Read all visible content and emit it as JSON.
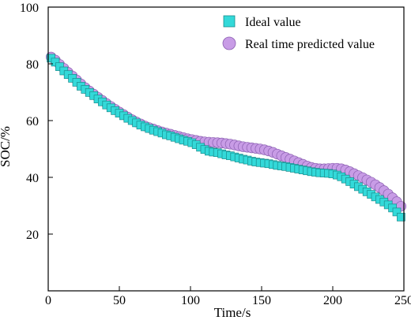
{
  "chart_data": {
    "type": "scatter",
    "title": "",
    "xlabel": "Time/s",
    "ylabel": "SOC/%",
    "xlim": [
      0,
      250
    ],
    "ylim": [
      0,
      100
    ],
    "xticks": [
      "0",
      "50",
      "100",
      "150",
      "200",
      "250"
    ],
    "yticks": [
      "20",
      "40",
      "60",
      "80",
      "100"
    ],
    "legend_position": "top-right",
    "grid": false,
    "series": [
      {
        "name": "Ideal value",
        "marker": "square",
        "color": "#33d9d9",
        "x": [
          2,
          5,
          8,
          11,
          14,
          17,
          20,
          23,
          26,
          29,
          32,
          35,
          38,
          41,
          44,
          47,
          50,
          53,
          56,
          59,
          62,
          65,
          68,
          71,
          74,
          77,
          80,
          83,
          86,
          89,
          92,
          95,
          98,
          101,
          104,
          107,
          110,
          113,
          116,
          119,
          122,
          125,
          128,
          131,
          134,
          137,
          140,
          143,
          146,
          149,
          152,
          155,
          158,
          161,
          164,
          167,
          170,
          173,
          176,
          179,
          182,
          185,
          188,
          191,
          194,
          197,
          200,
          203,
          206,
          209,
          212,
          215,
          218,
          221,
          224,
          227,
          230,
          233,
          236,
          239,
          242,
          245,
          248
        ],
        "y": [
          82.0,
          80.6,
          79.0,
          77.5,
          76.2,
          74.9,
          73.5,
          72.1,
          71.0,
          69.9,
          68.8,
          67.6,
          66.6,
          65.5,
          64.5,
          63.5,
          62.6,
          61.7,
          60.8,
          60.0,
          59.2,
          58.4,
          57.8,
          57.2,
          56.6,
          56.1,
          55.6,
          55.0,
          54.6,
          54.1,
          53.6,
          53.1,
          52.7,
          52.2,
          51.5,
          50.6,
          49.8,
          49.2,
          48.9,
          48.7,
          48.3,
          47.9,
          47.6,
          47.2,
          46.8,
          46.4,
          46.1,
          45.7,
          45.4,
          45.2,
          45.0,
          44.8,
          44.5,
          44.2,
          44.0,
          43.8,
          43.5,
          43.2,
          42.9,
          42.6,
          42.3,
          42.0,
          41.8,
          41.6,
          41.5,
          41.4,
          41.2,
          40.8,
          40.2,
          39.4,
          38.5,
          37.6,
          36.7,
          35.8,
          34.9,
          34.0,
          33.1,
          32.2,
          31.3,
          30.3,
          29.2,
          27.8,
          26.0
        ]
      },
      {
        "name": "Real time predicted value",
        "marker": "circle",
        "color": "#c89ce6",
        "x": [
          2,
          5,
          8,
          11,
          14,
          17,
          20,
          23,
          26,
          29,
          32,
          35,
          38,
          41,
          44,
          47,
          50,
          53,
          56,
          59,
          62,
          65,
          68,
          71,
          74,
          77,
          80,
          83,
          86,
          89,
          92,
          95,
          98,
          101,
          104,
          107,
          110,
          113,
          116,
          119,
          122,
          125,
          128,
          131,
          134,
          137,
          140,
          143,
          146,
          149,
          152,
          155,
          158,
          161,
          164,
          167,
          170,
          173,
          176,
          179,
          182,
          185,
          188,
          191,
          194,
          197,
          200,
          203,
          206,
          209,
          212,
          215,
          218,
          221,
          224,
          227,
          230,
          233,
          236,
          239,
          242,
          245,
          248
        ],
        "y": [
          82.4,
          81.3,
          79.8,
          78.4,
          77.0,
          75.7,
          74.3,
          72.9,
          71.6,
          70.4,
          69.3,
          68.2,
          67.1,
          66.0,
          65.0,
          64.0,
          63.0,
          62.1,
          61.2,
          60.3,
          59.5,
          58.8,
          58.1,
          57.5,
          57.0,
          56.5,
          56.0,
          55.6,
          55.2,
          54.8,
          54.4,
          54.0,
          53.6,
          53.3,
          53.0,
          52.7,
          52.5,
          52.4,
          52.3,
          52.2,
          52.1,
          51.9,
          51.7,
          51.4,
          51.1,
          50.8,
          50.6,
          50.4,
          50.2,
          50.0,
          49.7,
          49.3,
          48.8,
          48.2,
          47.6,
          47.0,
          46.4,
          45.8,
          45.2,
          44.6,
          44.0,
          43.5,
          43.2,
          43.0,
          43.0,
          43.1,
          43.2,
          43.2,
          43.0,
          42.6,
          42.0,
          41.3,
          40.6,
          39.9,
          39.1,
          38.3,
          37.4,
          36.4,
          35.3,
          34.1,
          32.8,
          31.4,
          29.8
        ]
      }
    ]
  }
}
